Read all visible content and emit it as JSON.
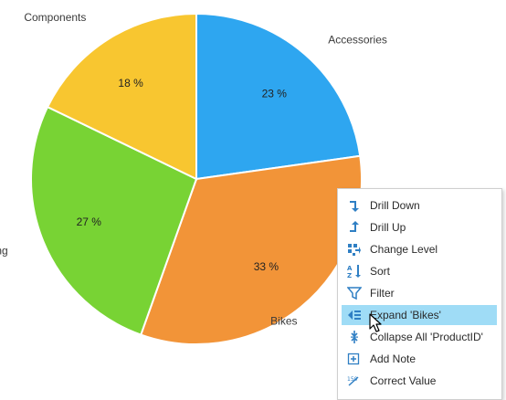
{
  "chart_data": {
    "type": "pie",
    "title": "",
    "slices": [
      {
        "label": "Accessories",
        "value": 23,
        "display": "23 %",
        "color": "#2ea6f0"
      },
      {
        "label": "Bikes",
        "value": 33,
        "display": "33 %",
        "color": "#f29438"
      },
      {
        "label": "Clothing",
        "value": 27,
        "display": "27 %",
        "color": "#78d334"
      },
      {
        "label": "Components",
        "value": 18,
        "display": "18 %",
        "color": "#f8c630"
      }
    ],
    "start_angle_deg": 0,
    "direction": "clockwise"
  },
  "context_menu": {
    "items": [
      {
        "label": "Drill Down",
        "icon": "drill-down-icon"
      },
      {
        "label": "Drill Up",
        "icon": "drill-up-icon"
      },
      {
        "label": "Change Level",
        "icon": "change-level-icon"
      },
      {
        "label": "Sort",
        "icon": "sort-az-icon"
      },
      {
        "label": "Filter",
        "icon": "filter-icon"
      },
      {
        "label": "Expand 'Bikes'",
        "icon": "expand-icon",
        "highlighted": true
      },
      {
        "label": "Collapse All 'ProductID'",
        "icon": "collapse-all-icon"
      },
      {
        "label": "Add Note",
        "icon": "add-note-icon"
      },
      {
        "label": "Correct Value",
        "icon": "correct-value-icon"
      }
    ]
  },
  "colors": {
    "icon_blue": "#2f7fc4",
    "menu_highlight": "#9fdcf6",
    "slice_border": "#ffffff"
  }
}
